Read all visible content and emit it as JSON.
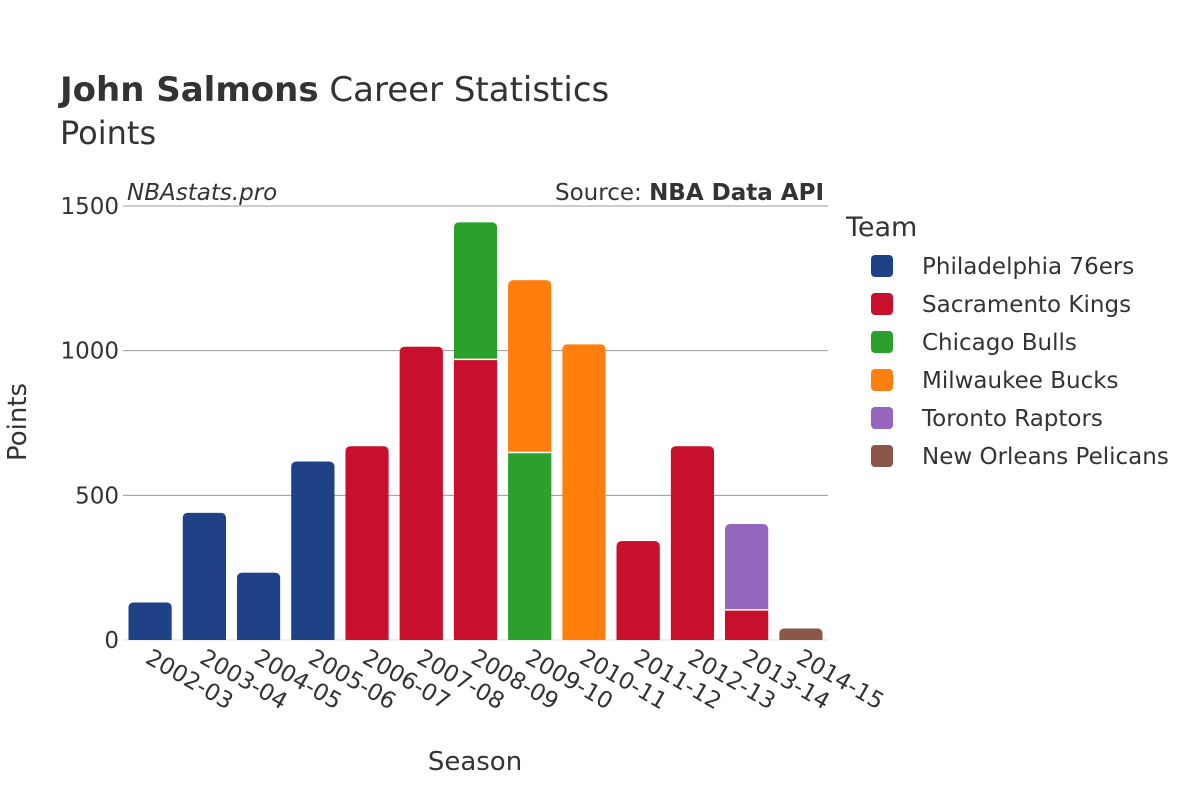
{
  "chart_data": {
    "type": "bar",
    "stacked": true,
    "title": {
      "bold": "John Salmons",
      "rest": " Career Statistics"
    },
    "subtitle": "Points",
    "credit": "NBAstats.pro",
    "source": {
      "label": "Source: ",
      "name": "NBA Data API"
    },
    "xlabel": "Season",
    "ylabel": "Points",
    "ylim": [
      0,
      1500
    ],
    "yticks": [
      0,
      500,
      1000,
      1500
    ],
    "grid": true,
    "legend": {
      "title": "Team",
      "position": "right"
    },
    "categories": [
      "2002-03",
      "2003-04",
      "2004-05",
      "2005-06",
      "2006-07",
      "2007-08",
      "2008-09",
      "2009-10",
      "2010-11",
      "2011-12",
      "2012-13",
      "2013-14",
      "2014-15"
    ],
    "series": [
      {
        "name": "Philadelphia 76ers",
        "color": "#1f4287",
        "values": [
          130,
          440,
          233,
          617,
          0,
          0,
          0,
          0,
          0,
          0,
          0,
          0,
          0
        ]
      },
      {
        "name": "Sacramento Kings",
        "color": "#c8102e",
        "values": [
          0,
          0,
          0,
          0,
          670,
          1014,
          970,
          0,
          0,
          342,
          670,
          104,
          0
        ]
      },
      {
        "name": "Chicago Bulls",
        "color": "#2ca02c",
        "values": [
          0,
          0,
          0,
          0,
          0,
          0,
          474,
          648,
          0,
          0,
          0,
          0,
          0
        ]
      },
      {
        "name": "Milwaukee Bucks",
        "color": "#ff7f0e",
        "values": [
          0,
          0,
          0,
          0,
          0,
          0,
          0,
          596,
          1022,
          0,
          0,
          0,
          0
        ]
      },
      {
        "name": "Toronto Raptors",
        "color": "#9467bd",
        "values": [
          0,
          0,
          0,
          0,
          0,
          0,
          0,
          0,
          0,
          0,
          0,
          297,
          0
        ]
      },
      {
        "name": "New Orleans Pelicans",
        "color": "#8c564b",
        "values": [
          0,
          0,
          0,
          0,
          0,
          0,
          0,
          0,
          0,
          0,
          0,
          0,
          40
        ]
      }
    ]
  }
}
